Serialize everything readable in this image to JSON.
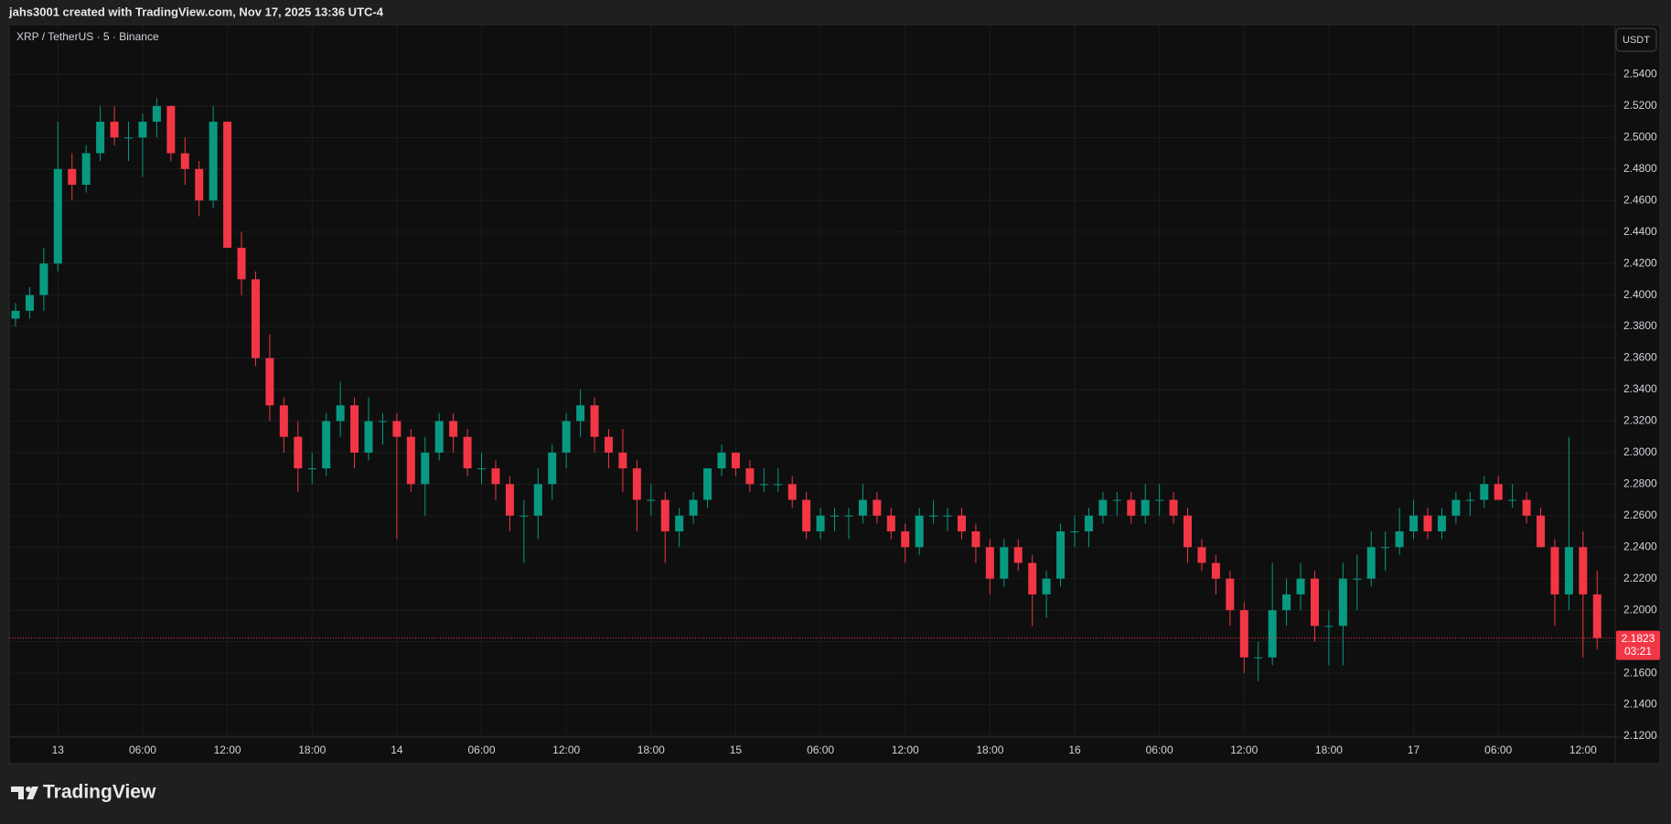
{
  "header": {
    "text": "jahs3001 created with TradingView.com, Nov 17, 2025 13:36 UTC-4"
  },
  "chart_data": {
    "type": "candlestick",
    "title": "XRP / TetherUS · 5 · Binance",
    "currency": "USDT",
    "countdown": "03:21",
    "up_color": "#089981",
    "down_color": "#f23645",
    "grid": true,
    "ylim": [
      2.12,
      2.571
    ],
    "yticks": [
      {
        "value": 2.12,
        "label": "2.1200"
      },
      {
        "value": 2.14,
        "label": "2.1400"
      },
      {
        "value": 2.16,
        "label": "2.1600"
      },
      {
        "value": 2.18,
        "label": "2.1800"
      },
      {
        "value": 2.2,
        "label": "2.2000"
      },
      {
        "value": 2.22,
        "label": "2.2200"
      },
      {
        "value": 2.24,
        "label": "2.2400"
      },
      {
        "value": 2.26,
        "label": "2.2600"
      },
      {
        "value": 2.28,
        "label": "2.2800"
      },
      {
        "value": 2.3,
        "label": "2.3000"
      },
      {
        "value": 2.32,
        "label": "2.3200"
      },
      {
        "value": 2.34,
        "label": "2.3400"
      },
      {
        "value": 2.36,
        "label": "2.3600"
      },
      {
        "value": 2.38,
        "label": "2.3800"
      },
      {
        "value": 2.4,
        "label": "2.4000"
      },
      {
        "value": 2.42,
        "label": "2.4200"
      },
      {
        "value": 2.44,
        "label": "2.4400"
      },
      {
        "value": 2.46,
        "label": "2.4600"
      },
      {
        "value": 2.48,
        "label": "2.4800"
      },
      {
        "value": 2.5,
        "label": "2.5000"
      },
      {
        "value": 2.52,
        "label": "2.5200"
      },
      {
        "value": 2.54,
        "label": "2.5400"
      }
    ],
    "categories": [
      null,
      null,
      null,
      "13",
      null,
      null,
      null,
      null,
      null,
      "06:00",
      null,
      null,
      null,
      null,
      null,
      "12:00",
      null,
      null,
      null,
      null,
      null,
      "18:00",
      null,
      null,
      null,
      null,
      null,
      "14",
      null,
      null,
      null,
      null,
      null,
      "06:00",
      null,
      null,
      null,
      null,
      null,
      "12:00",
      null,
      null,
      null,
      null,
      null,
      "18:00",
      null,
      null,
      null,
      null,
      null,
      "15",
      null,
      null,
      null,
      null,
      null,
      "06:00",
      null,
      null,
      null,
      null,
      null,
      "12:00",
      null,
      null,
      null,
      null,
      null,
      "18:00",
      null,
      null,
      null,
      null,
      null,
      "16",
      null,
      null,
      null,
      null,
      null,
      "06:00",
      null,
      null,
      null,
      null,
      null,
      "12:00",
      null,
      null,
      null,
      null,
      null,
      "18:00",
      null,
      null,
      null,
      null,
      null,
      "17",
      null,
      null,
      null,
      null,
      null,
      "06:00",
      null,
      null,
      null,
      null,
      null,
      "12:00",
      null
    ],
    "ohlc": [
      [
        2.385,
        2.395,
        2.38,
        2.39
      ],
      [
        2.39,
        2.405,
        2.385,
        2.4
      ],
      [
        2.4,
        2.43,
        2.39,
        2.42
      ],
      [
        2.42,
        2.51,
        2.415,
        2.48
      ],
      [
        2.48,
        2.49,
        2.46,
        2.47
      ],
      [
        2.47,
        2.495,
        2.465,
        2.49
      ],
      [
        2.49,
        2.52,
        2.485,
        2.51
      ],
      [
        2.51,
        2.52,
        2.495,
        2.5
      ],
      [
        2.5,
        2.51,
        2.485,
        2.5
      ],
      [
        2.5,
        2.515,
        2.475,
        2.51
      ],
      [
        2.51,
        2.525,
        2.5,
        2.52
      ],
      [
        2.52,
        2.52,
        2.485,
        2.49
      ],
      [
        2.49,
        2.5,
        2.47,
        2.48
      ],
      [
        2.48,
        2.485,
        2.45,
        2.46
      ],
      [
        2.46,
        2.52,
        2.455,
        2.51
      ],
      [
        2.51,
        2.51,
        2.43,
        2.43
      ],
      [
        2.43,
        2.44,
        2.4,
        2.41
      ],
      [
        2.41,
        2.415,
        2.355,
        2.36
      ],
      [
        2.36,
        2.375,
        2.32,
        2.33
      ],
      [
        2.33,
        2.335,
        2.3,
        2.31
      ],
      [
        2.31,
        2.32,
        2.275,
        2.29
      ],
      [
        2.29,
        2.3,
        2.28,
        2.29
      ],
      [
        2.29,
        2.325,
        2.285,
        2.32
      ],
      [
        2.32,
        2.345,
        2.31,
        2.33
      ],
      [
        2.33,
        2.335,
        2.29,
        2.3
      ],
      [
        2.3,
        2.335,
        2.295,
        2.32
      ],
      [
        2.32,
        2.325,
        2.305,
        2.32
      ],
      [
        2.32,
        2.325,
        2.245,
        2.31
      ],
      [
        2.31,
        2.315,
        2.275,
        2.28
      ],
      [
        2.28,
        2.31,
        2.26,
        2.3
      ],
      [
        2.3,
        2.325,
        2.295,
        2.32
      ],
      [
        2.32,
        2.325,
        2.3,
        2.31
      ],
      [
        2.31,
        2.315,
        2.285,
        2.29
      ],
      [
        2.29,
        2.3,
        2.28,
        2.29
      ],
      [
        2.29,
        2.295,
        2.27,
        2.28
      ],
      [
        2.28,
        2.285,
        2.25,
        2.26
      ],
      [
        2.26,
        2.27,
        2.23,
        2.26
      ],
      [
        2.26,
        2.29,
        2.245,
        2.28
      ],
      [
        2.28,
        2.305,
        2.27,
        2.3
      ],
      [
        2.3,
        2.325,
        2.29,
        2.32
      ],
      [
        2.32,
        2.34,
        2.31,
        2.33
      ],
      [
        2.33,
        2.335,
        2.3,
        2.31
      ],
      [
        2.31,
        2.315,
        2.29,
        2.3
      ],
      [
        2.3,
        2.315,
        2.275,
        2.29
      ],
      [
        2.29,
        2.295,
        2.25,
        2.27
      ],
      [
        2.27,
        2.28,
        2.26,
        2.27
      ],
      [
        2.27,
        2.275,
        2.23,
        2.25
      ],
      [
        2.25,
        2.265,
        2.24,
        2.26
      ],
      [
        2.26,
        2.275,
        2.255,
        2.27
      ],
      [
        2.27,
        2.29,
        2.265,
        2.29
      ],
      [
        2.29,
        2.305,
        2.285,
        2.3
      ],
      [
        2.3,
        2.3,
        2.285,
        2.29
      ],
      [
        2.29,
        2.295,
        2.275,
        2.28
      ],
      [
        2.28,
        2.29,
        2.275,
        2.28
      ],
      [
        2.28,
        2.29,
        2.275,
        2.28
      ],
      [
        2.28,
        2.285,
        2.265,
        2.27
      ],
      [
        2.27,
        2.275,
        2.245,
        2.25
      ],
      [
        2.25,
        2.265,
        2.245,
        2.26
      ],
      [
        2.26,
        2.265,
        2.25,
        2.26
      ],
      [
        2.26,
        2.265,
        2.245,
        2.26
      ],
      [
        2.26,
        2.28,
        2.255,
        2.27
      ],
      [
        2.27,
        2.275,
        2.255,
        2.26
      ],
      [
        2.26,
        2.265,
        2.245,
        2.25
      ],
      [
        2.25,
        2.255,
        2.23,
        2.24
      ],
      [
        2.24,
        2.265,
        2.235,
        2.26
      ],
      [
        2.26,
        2.27,
        2.255,
        2.26
      ],
      [
        2.26,
        2.265,
        2.25,
        2.26
      ],
      [
        2.26,
        2.265,
        2.245,
        2.25
      ],
      [
        2.25,
        2.255,
        2.23,
        2.24
      ],
      [
        2.24,
        2.245,
        2.21,
        2.22
      ],
      [
        2.22,
        2.245,
        2.215,
        2.24
      ],
      [
        2.24,
        2.245,
        2.225,
        2.23
      ],
      [
        2.23,
        2.235,
        2.19,
        2.21
      ],
      [
        2.21,
        2.225,
        2.195,
        2.22
      ],
      [
        2.22,
        2.255,
        2.215,
        2.25
      ],
      [
        2.25,
        2.26,
        2.24,
        2.25
      ],
      [
        2.25,
        2.265,
        2.24,
        2.26
      ],
      [
        2.26,
        2.275,
        2.255,
        2.27
      ],
      [
        2.27,
        2.275,
        2.26,
        2.27
      ],
      [
        2.27,
        2.275,
        2.255,
        2.26
      ],
      [
        2.26,
        2.28,
        2.255,
        2.27
      ],
      [
        2.27,
        2.28,
        2.26,
        2.27
      ],
      [
        2.27,
        2.275,
        2.255,
        2.26
      ],
      [
        2.26,
        2.265,
        2.23,
        2.24
      ],
      [
        2.24,
        2.245,
        2.225,
        2.23
      ],
      [
        2.23,
        2.235,
        2.21,
        2.22
      ],
      [
        2.22,
        2.225,
        2.19,
        2.2
      ],
      [
        2.2,
        2.205,
        2.16,
        2.17
      ],
      [
        2.17,
        2.18,
        2.155,
        2.17
      ],
      [
        2.17,
        2.23,
        2.165,
        2.2
      ],
      [
        2.2,
        2.22,
        2.19,
        2.21
      ],
      [
        2.21,
        2.23,
        2.2,
        2.22
      ],
      [
        2.22,
        2.225,
        2.18,
        2.19
      ],
      [
        2.19,
        2.2,
        2.165,
        2.19
      ],
      [
        2.19,
        2.23,
        2.165,
        2.22
      ],
      [
        2.22,
        2.235,
        2.2,
        2.22
      ],
      [
        2.22,
        2.25,
        2.215,
        2.24
      ],
      [
        2.24,
        2.25,
        2.225,
        2.24
      ],
      [
        2.24,
        2.265,
        2.235,
        2.25
      ],
      [
        2.25,
        2.27,
        2.245,
        2.26
      ],
      [
        2.26,
        2.265,
        2.245,
        2.25
      ],
      [
        2.25,
        2.265,
        2.245,
        2.26
      ],
      [
        2.26,
        2.275,
        2.255,
        2.27
      ],
      [
        2.27,
        2.275,
        2.26,
        2.27
      ],
      [
        2.27,
        2.285,
        2.265,
        2.28
      ],
      [
        2.28,
        2.285,
        2.27,
        2.27
      ],
      [
        2.27,
        2.28,
        2.265,
        2.27
      ],
      [
        2.27,
        2.275,
        2.255,
        2.26
      ],
      [
        2.26,
        2.265,
        2.24,
        2.24
      ],
      [
        2.24,
        2.245,
        2.19,
        2.21
      ],
      [
        2.21,
        2.31,
        2.2,
        2.24
      ],
      [
        2.24,
        2.25,
        2.17,
        2.21
      ],
      [
        2.21,
        2.225,
        2.175,
        2.1823
      ]
    ]
  },
  "footer": {
    "logo": "TradingView"
  }
}
